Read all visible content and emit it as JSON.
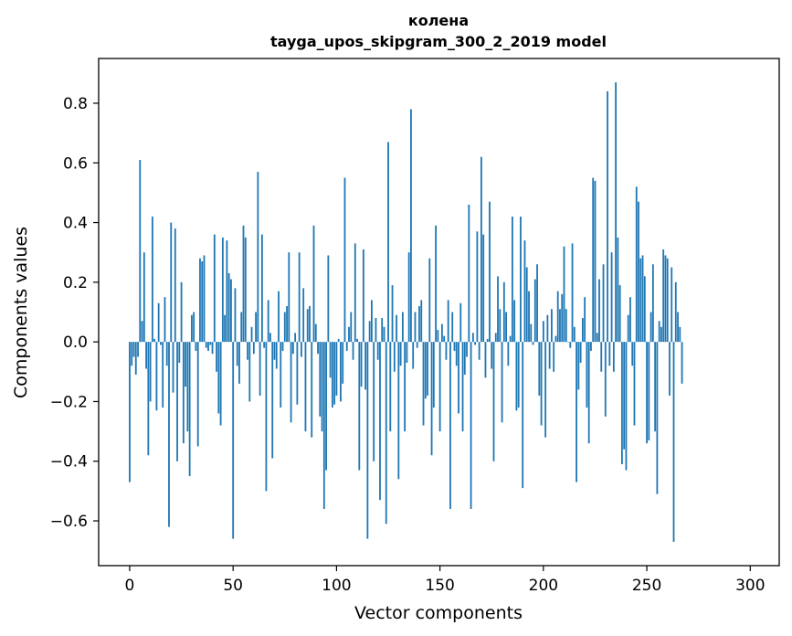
{
  "chart_data": {
    "type": "bar",
    "title": "колена",
    "subtitle": "tayga_upos_skipgram_300_2_2019 model",
    "xlabel": "Vector components",
    "ylabel": "Components values",
    "xlim": [
      -15,
      314
    ],
    "ylim": [
      -0.75,
      0.95
    ],
    "xticks": [
      0,
      50,
      100,
      150,
      200,
      250,
      300
    ],
    "xtick_labels": [
      "0",
      "50",
      "100",
      "150",
      "200",
      "250",
      "300"
    ],
    "yticks": [
      -0.6,
      -0.4,
      -0.2,
      0.0,
      0.2,
      0.4,
      0.6,
      0.8
    ],
    "ytick_labels": [
      "−0.6",
      "−0.4",
      "−0.2",
      "0.0",
      "0.2",
      "0.4",
      "0.6",
      "0.8"
    ],
    "bar_color": "#1f77b4",
    "grid": false,
    "values": [
      -0.47,
      -0.08,
      -0.05,
      -0.11,
      -0.05,
      0.61,
      0.07,
      0.3,
      -0.09,
      -0.38,
      -0.2,
      0.42,
      0.01,
      -0.23,
      0.13,
      -0.01,
      -0.22,
      0.15,
      -0.08,
      -0.62,
      0.4,
      -0.17,
      0.38,
      -0.4,
      -0.07,
      0.2,
      -0.34,
      -0.15,
      -0.3,
      -0.45,
      0.09,
      0.1,
      -0.03,
      -0.35,
      0.28,
      0.27,
      0.29,
      -0.02,
      -0.03,
      -0.01,
      -0.04,
      0.36,
      -0.1,
      -0.24,
      -0.28,
      0.35,
      0.09,
      0.34,
      0.23,
      0.21,
      -0.66,
      0.18,
      -0.08,
      -0.14,
      0.1,
      0.39,
      0.35,
      -0.06,
      -0.2,
      0.05,
      -0.04,
      0.1,
      0.57,
      -0.18,
      0.36,
      -0.02,
      -0.5,
      0.14,
      0.03,
      -0.39,
      -0.06,
      -0.09,
      0.17,
      -0.22,
      -0.03,
      0.1,
      0.12,
      0.3,
      -0.27,
      -0.04,
      0.03,
      -0.21,
      0.3,
      -0.05,
      0.18,
      -0.3,
      0.11,
      0.12,
      -0.32,
      0.39,
      0.06,
      -0.04,
      -0.25,
      -0.3,
      -0.56,
      -0.43,
      0.29,
      -0.12,
      -0.22,
      -0.21,
      -0.18,
      0.01,
      -0.2,
      -0.14,
      0.55,
      -0.03,
      0.05,
      0.1,
      -0.06,
      0.33,
      0.01,
      -0.43,
      -0.15,
      0.31,
      -0.16,
      -0.66,
      0.07,
      0.14,
      -0.4,
      0.08,
      -0.06,
      -0.53,
      0.08,
      0.05,
      -0.61,
      0.67,
      -0.3,
      0.19,
      -0.1,
      0.09,
      -0.46,
      -0.08,
      0.1,
      -0.3,
      -0.07,
      0.3,
      0.78,
      -0.09,
      0.1,
      -0.02,
      0.12,
      0.14,
      -0.28,
      -0.19,
      -0.18,
      0.28,
      -0.38,
      -0.22,
      0.39,
      0.04,
      -0.3,
      0.06,
      0.02,
      -0.06,
      0.14,
      -0.56,
      0.1,
      -0.03,
      -0.08,
      -0.24,
      0.13,
      -0.3,
      -0.11,
      -0.05,
      0.46,
      -0.56,
      0.03,
      -0.01,
      0.37,
      -0.06,
      0.62,
      0.36,
      -0.12,
      0.01,
      0.47,
      -0.09,
      -0.4,
      0.03,
      0.22,
      0.11,
      -0.27,
      0.2,
      0.1,
      -0.08,
      0.02,
      0.42,
      0.14,
      -0.23,
      -0.22,
      0.42,
      -0.49,
      0.34,
      0.25,
      0.17,
      0.06,
      -0.01,
      0.21,
      0.26,
      -0.18,
      -0.28,
      0.07,
      -0.32,
      0.09,
      -0.09,
      0.11,
      -0.1,
      0.02,
      0.17,
      0.11,
      0.16,
      0.32,
      0.11,
      0.0,
      -0.02,
      0.33,
      0.05,
      -0.47,
      -0.16,
      -0.07,
      0.08,
      0.15,
      -0.22,
      -0.34,
      -0.03,
      0.55,
      0.54,
      0.03,
      0.21,
      -0.1,
      0.26,
      -0.25,
      0.84,
      -0.08,
      0.3,
      -0.1,
      0.87,
      0.35,
      0.19,
      -0.41,
      -0.36,
      -0.43,
      0.09,
      0.15,
      -0.08,
      -0.28,
      0.52,
      0.47,
      0.28,
      0.29,
      0.22,
      -0.34,
      -0.33,
      0.1,
      0.26,
      -0.3,
      -0.51,
      0.07,
      0.05,
      0.31,
      0.29,
      0.28,
      -0.18,
      0.25,
      -0.67,
      0.2,
      0.1,
      0.05,
      -0.14
    ]
  }
}
